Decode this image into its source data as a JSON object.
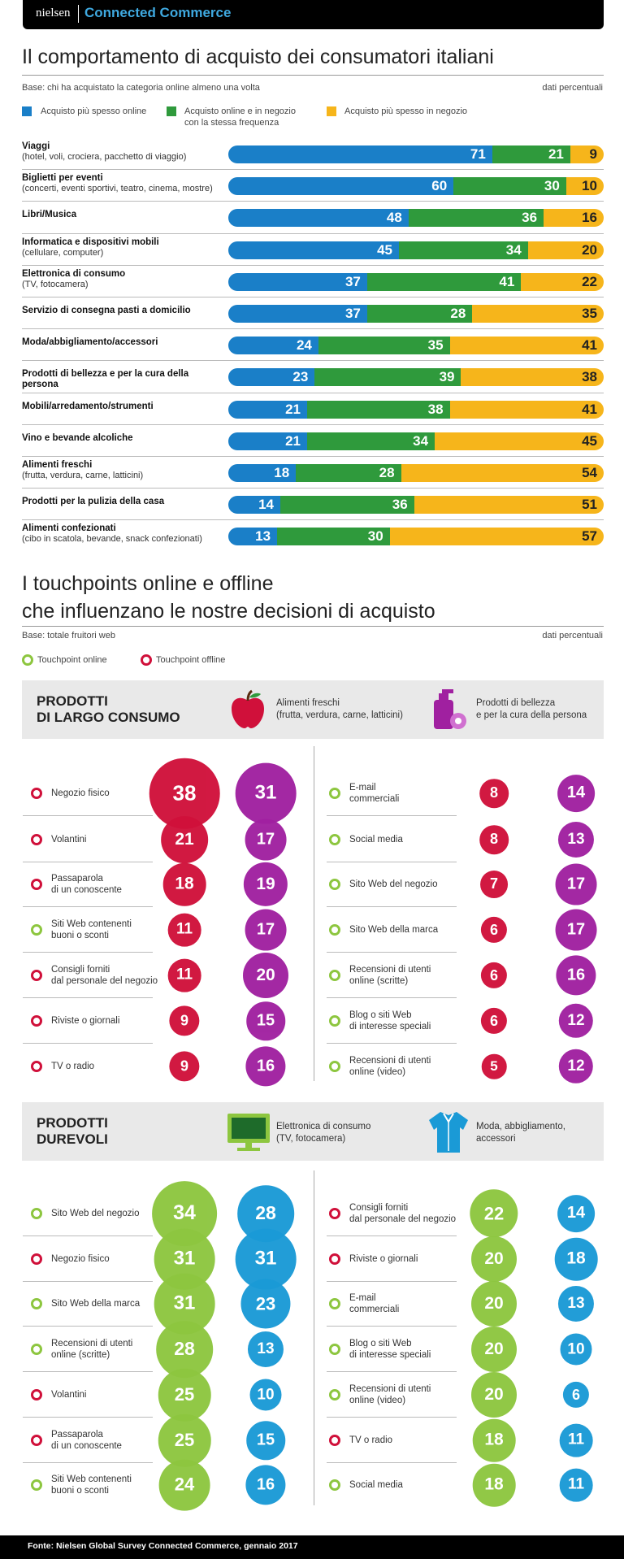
{
  "header": {
    "logo": "nielsen",
    "brand": "Connected Commerce"
  },
  "section1": {
    "title": "Il comportamento di acquisto dei consumatori italiani",
    "base": "Base: chi ha acquistato la categoria online almeno una volta",
    "unit": "dati percentuali",
    "legend": [
      {
        "label": "Acquisto più spesso online",
        "color": "#1a7fc8"
      },
      {
        "label": "Acquisto online e in negozio",
        "label2": "con la stessa frequenza",
        "color": "#2f9a3c"
      },
      {
        "label": "Acquisto più spesso in negozio",
        "color": "#f6b51b"
      }
    ]
  },
  "chart_data": [
    {
      "type": "bar",
      "stacked": true,
      "orientation": "horizontal",
      "title": "Il comportamento di acquisto dei consumatori italiani",
      "categories": [
        {
          "name": "Viaggi",
          "sub": "(hotel, voli, crociera, pacchetto di viaggio)"
        },
        {
          "name": "Biglietti per eventi",
          "sub": "(concerti, eventi sportivi, teatro, cinema, mostre)"
        },
        {
          "name": "Libri/Musica",
          "sub": ""
        },
        {
          "name": "Informatica e dispositivi mobili",
          "sub": "(cellulare, computer)"
        },
        {
          "name": "Elettronica di consumo",
          "sub": "(TV, fotocamera)"
        },
        {
          "name": "Servizio di consegna pasti a domicilio",
          "sub": ""
        },
        {
          "name": "Moda/abbigliamento/accessori",
          "sub": ""
        },
        {
          "name": "Prodotti di bellezza e per la cura della persona",
          "sub": ""
        },
        {
          "name": "Mobili/arredamento/strumenti",
          "sub": ""
        },
        {
          "name": "Vino e bevande alcoliche",
          "sub": ""
        },
        {
          "name": "Alimenti freschi",
          "sub": "(frutta, verdura, carne, latticini)"
        },
        {
          "name": "Prodotti per la pulizia della casa",
          "sub": ""
        },
        {
          "name": "Alimenti confezionati",
          "sub": "(cibo in scatola, bevande, snack confezionati)"
        }
      ],
      "series": [
        {
          "name": "Acquisto più spesso online",
          "color": "#1a7fc8",
          "values": [
            71,
            60,
            48,
            45,
            37,
            37,
            24,
            23,
            21,
            21,
            18,
            14,
            13
          ]
        },
        {
          "name": "Acquisto online e in negozio con la stessa frequenza",
          "color": "#2f9a3c",
          "values": [
            21,
            30,
            36,
            34,
            41,
            28,
            35,
            39,
            38,
            34,
            28,
            36,
            30
          ]
        },
        {
          "name": "Acquisto più spesso in negozio",
          "color": "#f6b51b",
          "values": [
            9,
            10,
            16,
            20,
            22,
            35,
            41,
            38,
            41,
            45,
            54,
            51,
            57
          ]
        }
      ]
    },
    {
      "type": "bubble",
      "title": "PRODOTTI DI LARGO CONSUMO",
      "series": [
        {
          "name": "Alimenti freschi",
          "color": "#d0103a"
        },
        {
          "name": "Prodotti di bellezza e per la cura della persona",
          "color": "#a020a0"
        }
      ],
      "left": [
        {
          "label": "Negozio fisico",
          "type": "off",
          "a": 38,
          "b": 31
        },
        {
          "label": "Volantini",
          "type": "off",
          "a": 21,
          "b": 17
        },
        {
          "label": "Passaparola\ndi un conoscente",
          "type": "off",
          "a": 18,
          "b": 19
        },
        {
          "label": "Siti Web contenenti\nbuoni o sconti",
          "type": "on",
          "a": 11,
          "b": 17
        },
        {
          "label": "Consigli forniti\ndal personale del negozio",
          "type": "off",
          "a": 11,
          "b": 20
        },
        {
          "label": "Riviste o giornali",
          "type": "off",
          "a": 9,
          "b": 15
        },
        {
          "label": "TV o radio",
          "type": "off",
          "a": 9,
          "b": 16
        }
      ],
      "right": [
        {
          "label": "E-mail\ncommerciali",
          "type": "on",
          "a": 8,
          "b": 14
        },
        {
          "label": "Social media",
          "type": "on",
          "a": 8,
          "b": 13
        },
        {
          "label": "Sito Web del negozio",
          "type": "on",
          "a": 7,
          "b": 17
        },
        {
          "label": "Sito Web della marca",
          "type": "on",
          "a": 6,
          "b": 17
        },
        {
          "label": "Recensioni di utenti\nonline (scritte)",
          "type": "on",
          "a": 6,
          "b": 16
        },
        {
          "label": "Blog o siti Web\ndi interesse speciali",
          "type": "on",
          "a": 6,
          "b": 12
        },
        {
          "label": "Recensioni di utenti\nonline (video)",
          "type": "on",
          "a": 5,
          "b": 12
        }
      ]
    },
    {
      "type": "bubble",
      "title": "PRODOTTI DUREVOLI",
      "series": [
        {
          "name": "Elettronica di consumo (TV, fotocamera)",
          "color": "#8dc63f"
        },
        {
          "name": "Moda, abbigliamento, accessori",
          "color": "#1a9ad6"
        }
      ],
      "left": [
        {
          "label": "Sito Web del negozio",
          "type": "on",
          "a": 34,
          "b": 28
        },
        {
          "label": "Negozio fisico",
          "type": "off",
          "a": 31,
          "b": 31
        },
        {
          "label": "Sito Web della marca",
          "type": "on",
          "a": 31,
          "b": 23
        },
        {
          "label": "Recensioni di utenti\nonline (scritte)",
          "type": "on",
          "a": 28,
          "b": 13
        },
        {
          "label": "Volantini",
          "type": "off",
          "a": 25,
          "b": 10
        },
        {
          "label": "Passaparola\ndi un conoscente",
          "type": "off",
          "a": 25,
          "b": 15
        },
        {
          "label": "Siti Web contenenti\nbuoni o sconti",
          "type": "on",
          "a": 24,
          "b": 16
        }
      ],
      "right": [
        {
          "label": "Consigli forniti\ndal personale del negozio",
          "type": "off",
          "a": 22,
          "b": 14
        },
        {
          "label": "Riviste o giornali",
          "type": "off",
          "a": 20,
          "b": 18
        },
        {
          "label": "E-mail\ncommerciali",
          "type": "on",
          "a": 20,
          "b": 13
        },
        {
          "label": "Blog o siti Web\ndi interesse speciali",
          "type": "on",
          "a": 20,
          "b": 10
        },
        {
          "label": "Recensioni di utenti\nonline (video)",
          "type": "on",
          "a": 20,
          "b": 6
        },
        {
          "label": "TV o radio",
          "type": "off",
          "a": 18,
          "b": 11
        },
        {
          "label": "Social media",
          "type": "on",
          "a": 18,
          "b": 11
        }
      ]
    }
  ],
  "section2": {
    "title_line1": "I touchpoints online e offline",
    "title_line2": "che influenzano le nostre decisioni di acquisto",
    "base": "Base: totale fruitori web",
    "unit": "dati percentuali",
    "legend_online": "Touchpoint online",
    "legend_offline": "Touchpoint offline",
    "online_color": "#8dc63f",
    "offline_color": "#d0103a"
  },
  "panel1": {
    "title_line1": "PRODOTTI",
    "title_line2": "DI LARGO CONSUMO",
    "cat1_line1": "Alimenti freschi",
    "cat1_line2": "(frutta, verdura, carne, latticini)",
    "cat1_icon": "apple-icon",
    "cat2_line1": "Prodotti di bellezza",
    "cat2_line2": "e per la cura della persona",
    "cat2_icon": "cosmetics-icon"
  },
  "panel2": {
    "title_line1": "PRODOTTI",
    "title_line2": "DUREVOLI",
    "cat1_line1": "Elettronica di consumo",
    "cat1_line2": "(TV, fotocamera)",
    "cat1_icon": "monitor-icon",
    "cat2_line1": "Moda, abbigliamento,",
    "cat2_line2": "accessori",
    "cat2_icon": "shirt-icon"
  },
  "footer": {
    "source": "Fonte: Nielsen Global Survey Connected Commerce, gennaio 2017"
  }
}
